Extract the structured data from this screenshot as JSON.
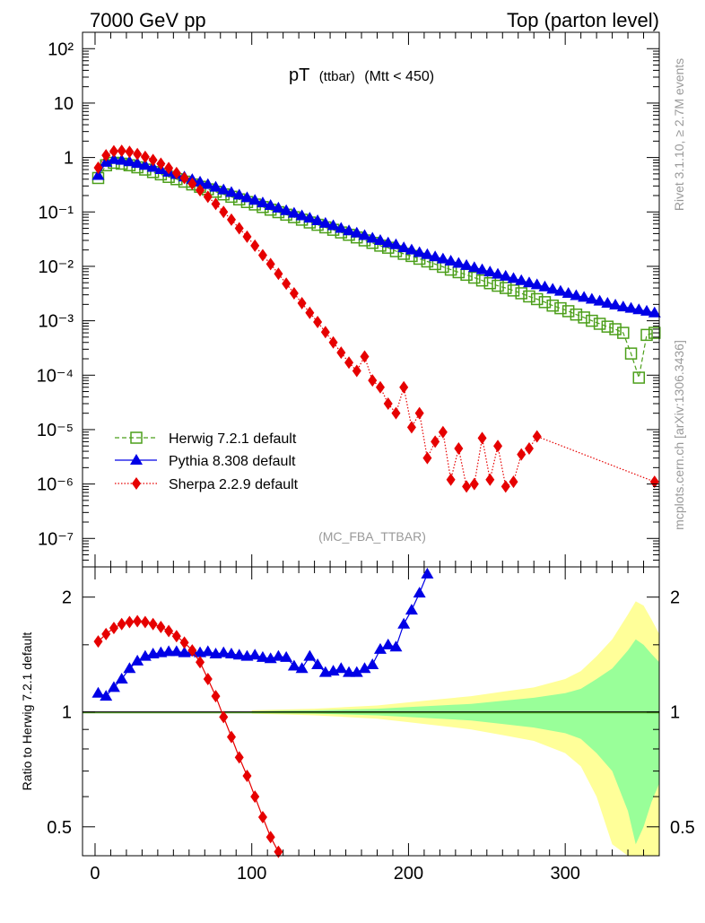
{
  "header": {
    "left": "7000 GeV pp",
    "right": "Top (parton level)"
  },
  "plot_title": {
    "main": "pT",
    "sub": "(ttbar)",
    "cut": "(Mtt < 450)"
  },
  "side_labels": {
    "rivet": "Rivet 3.1.10, ≥ 2.7M events",
    "mcplots": "mcplots.cern.ch [arXiv:1306.3436]"
  },
  "analysis_tag": "(MC_FBA_TTBAR)",
  "colors": {
    "herwig": "#4c9f1a",
    "pythia": "#0000e6",
    "sherpa": "#e60000",
    "band_outer": "#ffff99",
    "band_inner": "#99ff99"
  },
  "chart_data": [
    {
      "type": "line",
      "panel": "main",
      "y_scale": "log",
      "xlim": [
        -8,
        360
      ],
      "ylim": [
        3e-08,
        200
      ],
      "y_tick_labels": [
        "10⁻⁷",
        "10⁻⁶",
        "10⁻⁵",
        "10⁻⁴",
        "10⁻³",
        "10⁻²",
        "10⁻¹",
        "1",
        "10",
        "10²"
      ],
      "legend_position": "bottom-left",
      "series": [
        {
          "name": "Herwig 7.2.1 default",
          "marker": "open-square",
          "line": "dashed",
          "x": [
            2,
            7,
            12,
            17,
            22,
            27,
            32,
            37,
            42,
            47,
            52,
            57,
            62,
            67,
            72,
            77,
            82,
            87,
            92,
            97,
            102,
            107,
            112,
            117,
            122,
            127,
            132,
            137,
            142,
            147,
            152,
            157,
            162,
            167,
            172,
            177,
            182,
            187,
            192,
            197,
            202,
            207,
            212,
            217,
            222,
            227,
            232,
            237,
            242,
            247,
            252,
            257,
            262,
            267,
            272,
            277,
            282,
            287,
            292,
            297,
            302,
            307,
            312,
            317,
            322,
            327,
            332,
            337,
            342,
            347,
            352,
            357
          ],
          "y": [
            0.42,
            0.72,
            0.8,
            0.77,
            0.72,
            0.66,
            0.6,
            0.54,
            0.49,
            0.44,
            0.4,
            0.36,
            0.32,
            0.29,
            0.26,
            0.235,
            0.21,
            0.19,
            0.17,
            0.152,
            0.137,
            0.123,
            0.11,
            0.099,
            0.089,
            0.08,
            0.072,
            0.064,
            0.058,
            0.052,
            0.047,
            0.042,
            0.038,
            0.034,
            0.03,
            0.027,
            0.024,
            0.022,
            0.019,
            0.017,
            0.0155,
            0.0138,
            0.0123,
            0.011,
            0.0098,
            0.0087,
            0.0078,
            0.007,
            0.0062,
            0.0055,
            0.0049,
            0.0044,
            0.004,
            0.0036,
            0.0032,
            0.0028,
            0.0025,
            0.0022,
            0.0019,
            0.0017,
            0.0015,
            0.0013,
            0.00115,
            0.001,
            0.00088,
            0.00078,
            0.0007,
            0.0006,
            0.00025,
            9e-05,
            0.00055,
            0.0006
          ]
        },
        {
          "name": "Pythia 8.308 default",
          "marker": "filled-triangle",
          "line": "solid",
          "x": [
            2,
            7,
            12,
            17,
            22,
            27,
            32,
            37,
            42,
            47,
            52,
            57,
            62,
            67,
            72,
            77,
            82,
            87,
            92,
            97,
            102,
            107,
            112,
            117,
            122,
            127,
            132,
            137,
            142,
            147,
            152,
            157,
            162,
            167,
            172,
            177,
            182,
            187,
            192,
            197,
            202,
            207,
            212,
            217,
            222,
            227,
            232,
            237,
            242,
            247,
            252,
            257,
            262,
            267,
            272,
            277,
            282,
            287,
            292,
            297,
            302,
            307,
            312,
            317,
            322,
            327,
            332,
            337,
            342,
            347,
            352,
            357
          ],
          "y": [
            0.47,
            0.82,
            0.92,
            0.89,
            0.84,
            0.78,
            0.72,
            0.66,
            0.6,
            0.54,
            0.49,
            0.44,
            0.395,
            0.355,
            0.32,
            0.285,
            0.255,
            0.228,
            0.205,
            0.183,
            0.164,
            0.147,
            0.132,
            0.118,
            0.106,
            0.095,
            0.085,
            0.077,
            0.069,
            0.062,
            0.056,
            0.05,
            0.045,
            0.041,
            0.037,
            0.033,
            0.03,
            0.027,
            0.025,
            0.022,
            0.02,
            0.018,
            0.0165,
            0.015,
            0.0137,
            0.0125,
            0.0114,
            0.0104,
            0.0095,
            0.0087,
            0.0079,
            0.0072,
            0.0066,
            0.006,
            0.0055,
            0.005,
            0.0046,
            0.0042,
            0.0038,
            0.0035,
            0.0032,
            0.0029,
            0.0027,
            0.0025,
            0.0023,
            0.0021,
            0.00195,
            0.0018,
            0.0017,
            0.0016,
            0.0015,
            0.0014
          ]
        },
        {
          "name": "Sherpa 2.2.9 default",
          "marker": "filled-diamond",
          "line": "dotted",
          "x": [
            2,
            7,
            12,
            17,
            22,
            27,
            32,
            37,
            42,
            47,
            52,
            57,
            62,
            67,
            72,
            77,
            82,
            87,
            92,
            97,
            102,
            107,
            112,
            117,
            122,
            127,
            132,
            137,
            142,
            147,
            152,
            157,
            162,
            167,
            172,
            177,
            182,
            187,
            192,
            197,
            202,
            207,
            212,
            217,
            222,
            227,
            232,
            237,
            242,
            247,
            252,
            257,
            262,
            267,
            272,
            277,
            282,
            357
          ],
          "y": [
            0.65,
            1.1,
            1.3,
            1.33,
            1.27,
            1.16,
            1.03,
            0.9,
            0.77,
            0.64,
            0.52,
            0.42,
            0.33,
            0.25,
            0.19,
            0.14,
            0.1,
            0.072,
            0.05,
            0.035,
            0.024,
            0.016,
            0.011,
            0.0073,
            0.0048,
            0.0032,
            0.0021,
            0.0014,
            0.00095,
            0.00062,
            0.0004,
            0.00026,
            0.00017,
            0.00012,
            0.00022,
            8e-05,
            6e-05,
            3e-05,
            2e-05,
            6e-05,
            1.1e-05,
            2e-05,
            3e-06,
            6e-06,
            9e-06,
            1.2e-06,
            4.5e-06,
            9e-07,
            1e-06,
            7e-06,
            1.2e-06,
            5e-06,
            9e-07,
            1.1e-06,
            3.5e-06,
            4.5e-06,
            7.5e-06,
            1.1e-06
          ]
        }
      ]
    },
    {
      "type": "line",
      "panel": "ratio",
      "ylabel": "Ratio to Herwig 7.2.1 default",
      "y_scale": "log",
      "xlim": [
        -8,
        360
      ],
      "ylim": [
        0.42,
        2.4
      ],
      "y_tick_labels": [
        "0.5",
        "1",
        "2"
      ],
      "x_tick_labels": [
        "0",
        "100",
        "200",
        "300"
      ],
      "reference_series": "Herwig 7.2.1 default",
      "band_x": [
        100,
        120,
        140,
        160,
        180,
        200,
        220,
        240,
        260,
        280,
        300,
        310,
        320,
        330,
        340,
        345,
        350,
        355,
        360
      ],
      "band_outer_fraction": [
        0.01,
        0.015,
        0.02,
        0.03,
        0.04,
        0.06,
        0.08,
        0.1,
        0.13,
        0.16,
        0.22,
        0.28,
        0.4,
        0.55,
        0.8,
        0.95,
        0.9,
        0.75,
        0.6
      ],
      "band_inner_fraction": [
        0.005,
        0.008,
        0.01,
        0.015,
        0.02,
        0.03,
        0.04,
        0.05,
        0.07,
        0.09,
        0.12,
        0.15,
        0.22,
        0.3,
        0.45,
        0.55,
        0.5,
        0.42,
        0.35
      ],
      "series": [
        {
          "name": "Pythia 8.308 default",
          "x": [
            2,
            7,
            12,
            17,
            22,
            27,
            32,
            37,
            42,
            47,
            52,
            57,
            62,
            67,
            72,
            77,
            82,
            87,
            92,
            97,
            102,
            107,
            112,
            117,
            122,
            127,
            132,
            137,
            142,
            147,
            152,
            157,
            162,
            167,
            172,
            177,
            182,
            187,
            192,
            197,
            202,
            207,
            212
          ],
          "y": [
            1.12,
            1.1,
            1.16,
            1.22,
            1.3,
            1.36,
            1.4,
            1.42,
            1.43,
            1.44,
            1.44,
            1.43,
            1.44,
            1.43,
            1.44,
            1.42,
            1.43,
            1.42,
            1.41,
            1.4,
            1.41,
            1.39,
            1.38,
            1.4,
            1.39,
            1.32,
            1.3,
            1.4,
            1.33,
            1.27,
            1.28,
            1.3,
            1.27,
            1.27,
            1.3,
            1.33,
            1.46,
            1.5,
            1.48,
            1.7,
            1.85,
            2.05,
            2.3
          ]
        },
        {
          "name": "Sherpa 2.2.9 default",
          "x": [
            2,
            7,
            12,
            17,
            22,
            27,
            32,
            37,
            42,
            47,
            52,
            57,
            62,
            67,
            72,
            77,
            82,
            87,
            92,
            97,
            102,
            107,
            112,
            117
          ],
          "y": [
            1.53,
            1.6,
            1.66,
            1.7,
            1.72,
            1.73,
            1.72,
            1.7,
            1.67,
            1.63,
            1.58,
            1.52,
            1.45,
            1.35,
            1.22,
            1.1,
            0.97,
            0.86,
            0.76,
            0.68,
            0.6,
            0.53,
            0.47,
            0.43
          ]
        }
      ]
    }
  ]
}
